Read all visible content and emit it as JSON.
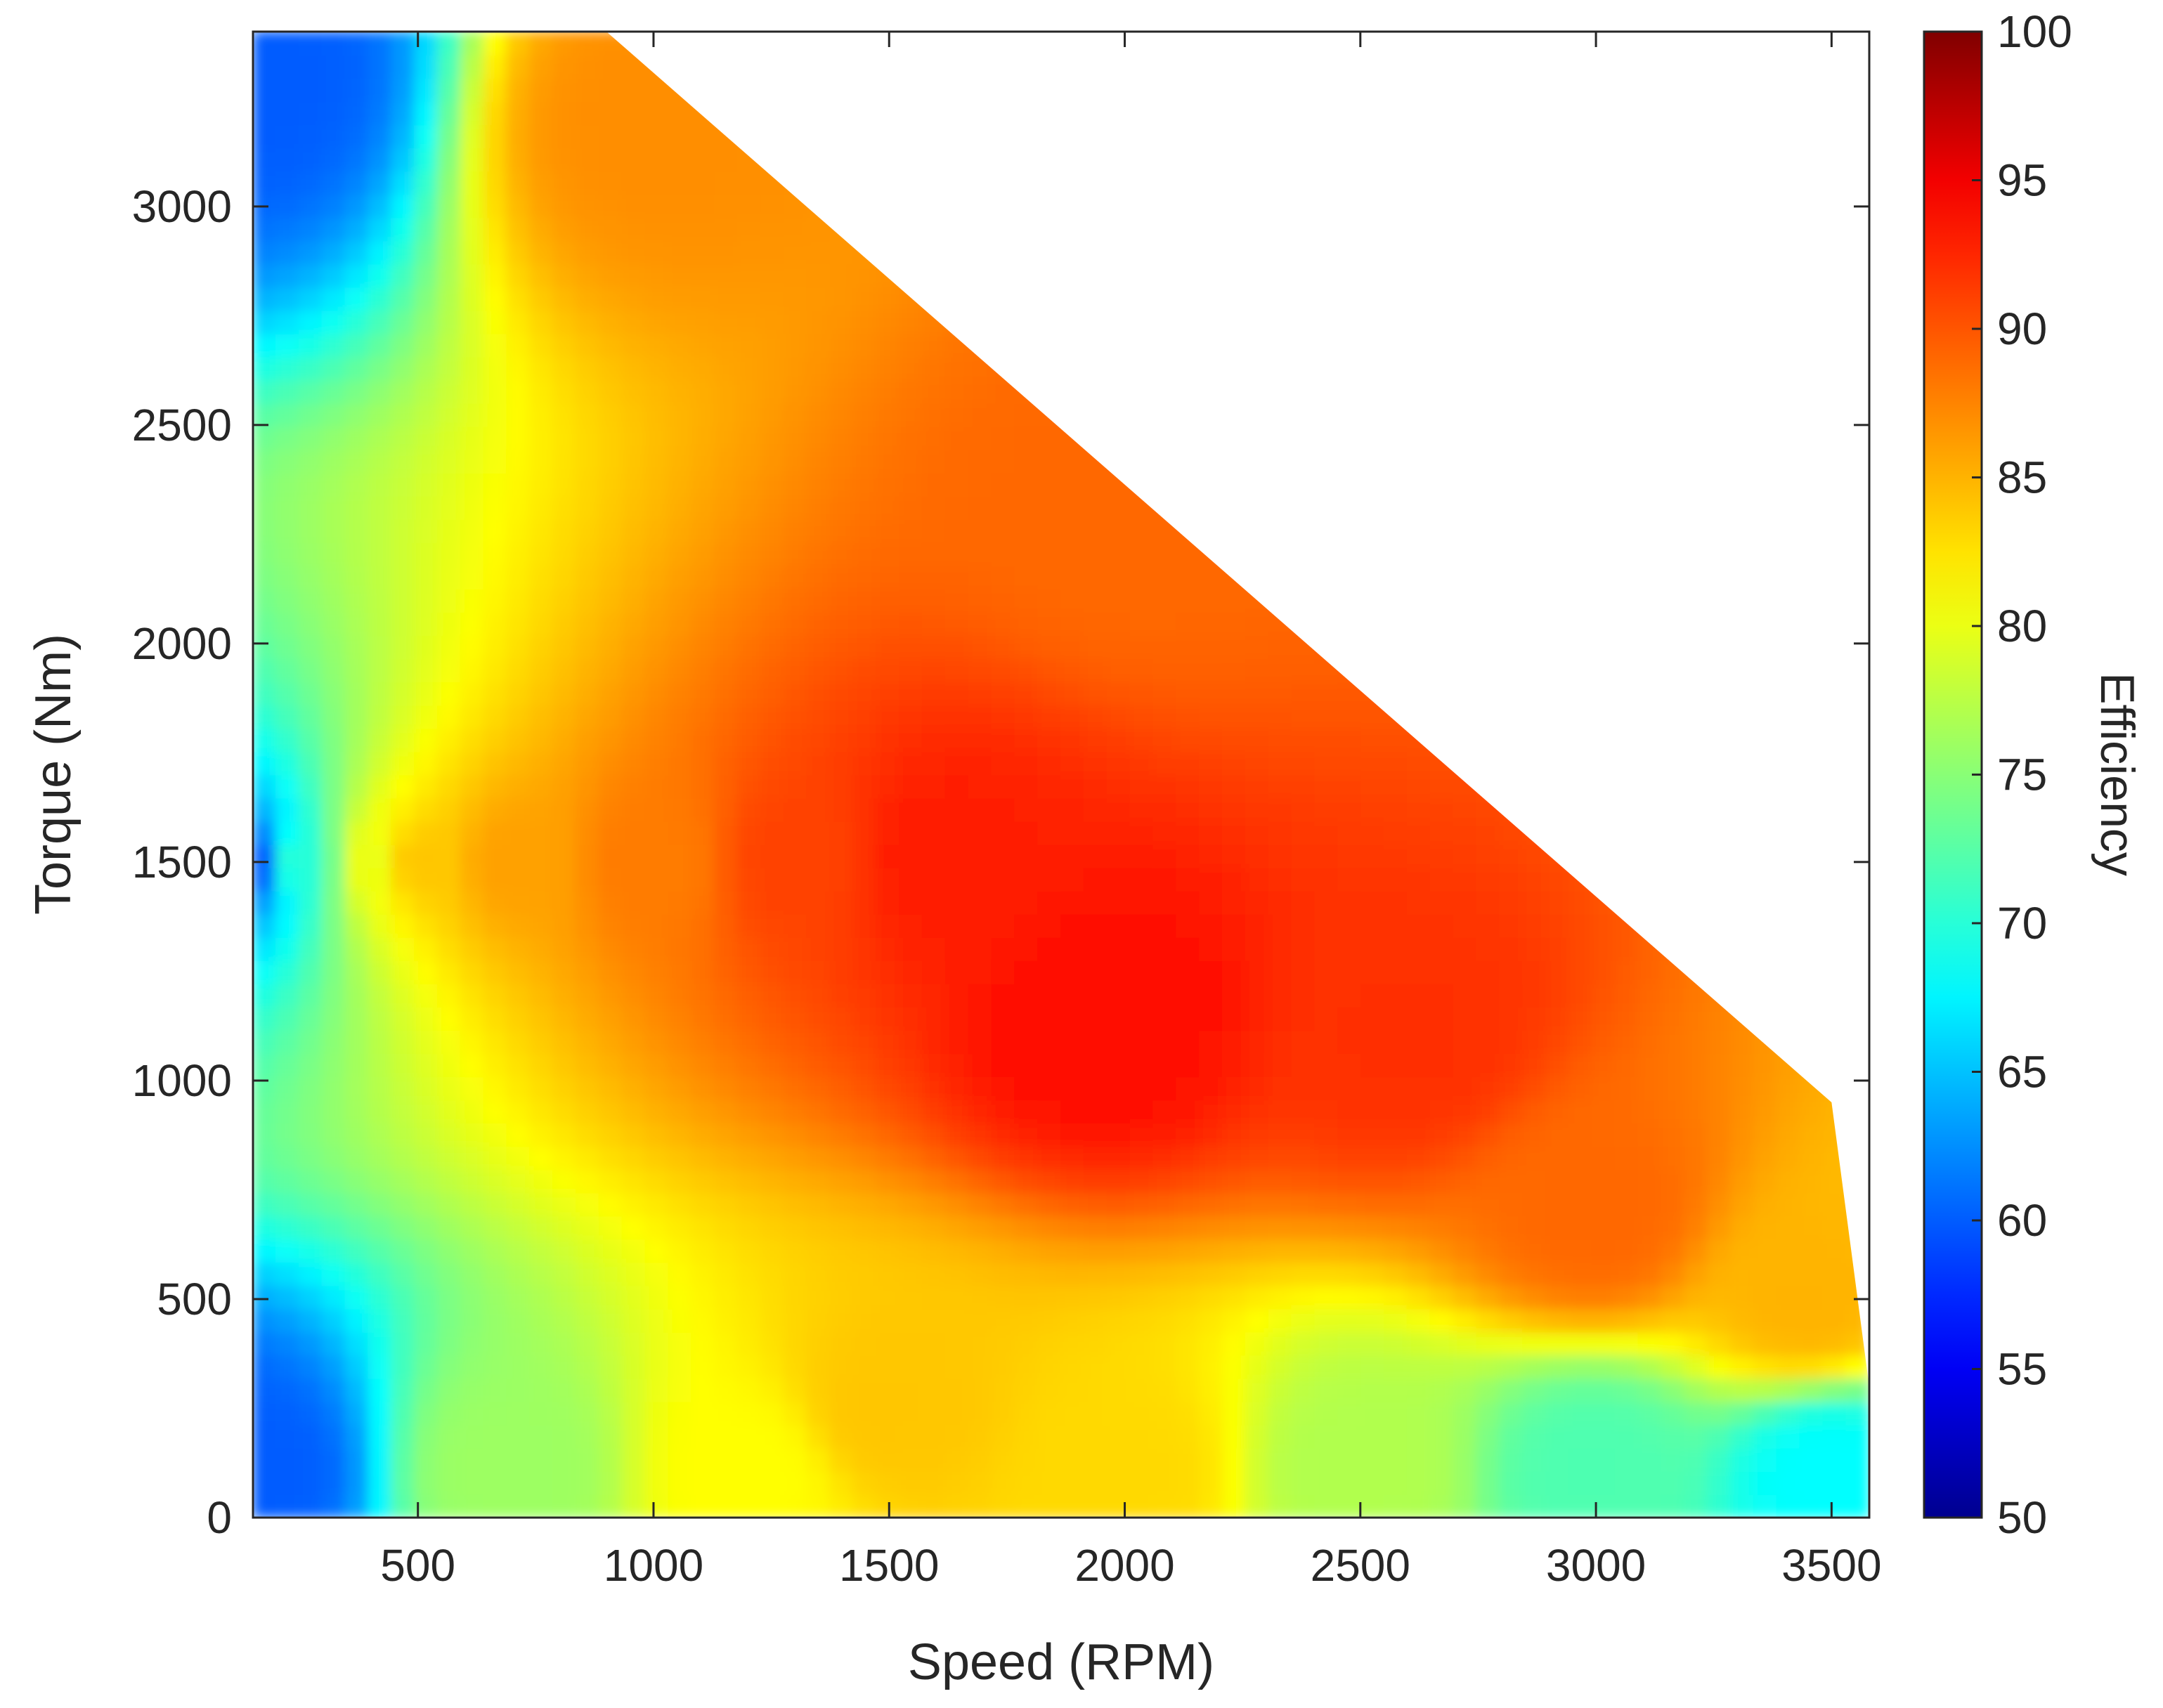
{
  "chart_data": {
    "type": "heatmap",
    "title": "",
    "xlabel": "Speed (RPM)",
    "ylabel": "Torque (Nm)",
    "xlim": [
      150,
      3580
    ],
    "ylim": [
      0,
      3400
    ],
    "xticks": [
      500,
      1000,
      1500,
      2000,
      2500,
      3000,
      3500
    ],
    "yticks": [
      0,
      500,
      1000,
      1500,
      2000,
      2500,
      3000
    ],
    "grid": false,
    "colorbar": {
      "label": "Efficiency",
      "range": [
        50,
        100
      ],
      "ticks": [
        50,
        55,
        60,
        65,
        70,
        75,
        80,
        85,
        90,
        95,
        100
      ],
      "colormap": "jet",
      "colormap_stops": [
        "#00008f",
        "#0000ff",
        "#00ffff",
        "#ffff00",
        "#ff0000",
        "#800000"
      ]
    },
    "torque_limit_curve": [
      {
        "speed": 150,
        "torque": 3400
      },
      {
        "speed": 900,
        "torque": 3400
      },
      {
        "speed": 3500,
        "torque": 950
      },
      {
        "speed": 3580,
        "torque": 300
      },
      {
        "speed": 3580,
        "torque": 0
      }
    ],
    "peak_efficiency_point": {
      "speed": 1950,
      "torque": 1150,
      "efficiency": 94
    },
    "efficiency_samples": [
      {
        "speed": 150,
        "torque": 100,
        "efficiency": 60
      },
      {
        "speed": 150,
        "torque": 1500,
        "efficiency": 60
      },
      {
        "speed": 150,
        "torque": 3300,
        "efficiency": 60
      },
      {
        "speed": 250,
        "torque": 1500,
        "efficiency": 70
      },
      {
        "speed": 400,
        "torque": 1500,
        "efficiency": 80
      },
      {
        "speed": 500,
        "torque": 1500,
        "efficiency": 84
      },
      {
        "speed": 700,
        "torque": 1500,
        "efficiency": 86
      },
      {
        "speed": 1000,
        "torque": 1500,
        "efficiency": 88
      },
      {
        "speed": 1300,
        "torque": 1500,
        "efficiency": 91
      },
      {
        "speed": 1600,
        "torque": 1500,
        "efficiency": 93
      },
      {
        "speed": 1950,
        "torque": 1150,
        "efficiency": 94
      },
      {
        "speed": 2600,
        "torque": 1100,
        "efficiency": 92
      },
      {
        "speed": 3000,
        "torque": 700,
        "efficiency": 89
      },
      {
        "speed": 3450,
        "torque": 500,
        "efficiency": 85
      },
      {
        "speed": 1500,
        "torque": 250,
        "efficiency": 84
      },
      {
        "speed": 2000,
        "torque": 100,
        "efficiency": 83
      },
      {
        "speed": 2500,
        "torque": 100,
        "efficiency": 77
      },
      {
        "speed": 3000,
        "torque": 100,
        "efficiency": 72
      },
      {
        "speed": 3500,
        "torque": 100,
        "efficiency": 68
      },
      {
        "speed": 700,
        "torque": 100,
        "efficiency": 76
      },
      {
        "speed": 1200,
        "torque": 100,
        "efficiency": 81
      },
      {
        "speed": 1000,
        "torque": 3200,
        "efficiency": 87
      },
      {
        "speed": 2000,
        "torque": 2300,
        "efficiency": 89
      }
    ]
  }
}
